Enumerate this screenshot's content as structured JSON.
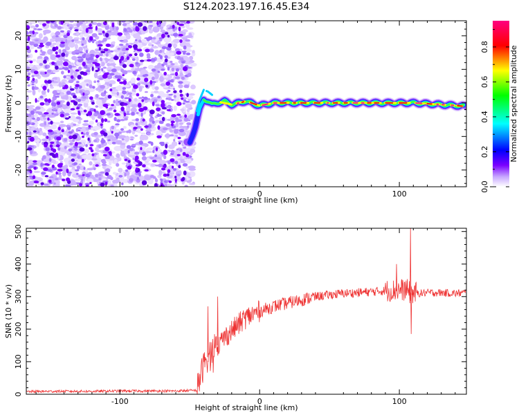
{
  "title": "S124.2023.197.16.45.E34",
  "chart_data": [
    {
      "type": "heatmap",
      "xlabel": "Height of straight line (km)",
      "ylabel": "Frequency (Hz)",
      "xlim": [
        -167,
        148
      ],
      "ylim": [
        -25,
        24.5
      ],
      "xticks": [
        -100,
        0,
        100
      ],
      "xtick_labels": [
        "-100",
        "0",
        "100"
      ],
      "yticks": [
        -20,
        -10,
        0,
        10,
        20
      ],
      "ytick_labels": [
        "-20",
        "-10",
        "0",
        "10",
        "20"
      ],
      "noise_region_x": [
        -167,
        -50
      ],
      "ridge": {
        "x": [
          -50,
          -46,
          -43,
          -40,
          -37,
          -34,
          -30,
          -25,
          -20,
          -10,
          0,
          10,
          30,
          60,
          90,
          110,
          130,
          148
        ],
        "y": [
          -12,
          -7,
          -2,
          1,
          0.5,
          -0.5,
          0,
          0.5,
          -0.5,
          0.5,
          -0.8,
          0,
          0,
          0,
          0,
          0,
          -0.5,
          -1
        ]
      },
      "colorbar": {
        "label": "Normalized spectral amplitude",
        "range": [
          0,
          0.95
        ],
        "ticks": [
          0.0,
          0.2,
          0.4,
          0.6,
          0.8
        ],
        "tick_labels": [
          "0.0",
          "0.2",
          "0.4",
          "0.6",
          "0.8"
        ],
        "colors": [
          "#ffffff",
          "#c8a8ff",
          "#7a00ff",
          "#0000ff",
          "#00ffff",
          "#00ff00",
          "#ffff00",
          "#ff0000",
          "#ff0080"
        ]
      }
    },
    {
      "type": "line",
      "xlabel": "Height of straight line (km)",
      "ylabel": "SNR (10 * v/v)",
      "xlim": [
        -167,
        148
      ],
      "ylim": [
        0,
        510
      ],
      "xticks": [
        -100,
        0,
        100
      ],
      "xtick_labels": [
        "-100",
        "0",
        "100"
      ],
      "yticks": [
        0,
        100,
        200,
        300,
        400,
        500
      ],
      "ytick_labels": [
        "0",
        "100",
        "200",
        "300",
        "400",
        "500"
      ],
      "color": "#ee3333",
      "series": [
        {
          "x": [
            -167,
            -150,
            -120,
            -100,
            -80,
            -60,
            -45,
            -40,
            -35,
            -30,
            -25,
            -20,
            -15,
            -10,
            -5,
            0,
            10,
            20,
            30,
            40,
            50,
            60,
            70,
            80,
            90,
            100,
            105,
            108,
            110,
            115,
            120,
            130,
            140,
            148
          ],
          "y": [
            8,
            9,
            9,
            10,
            10,
            10,
            12,
            90,
            130,
            150,
            175,
            195,
            215,
            235,
            245,
            255,
            270,
            280,
            290,
            300,
            305,
            310,
            312,
            315,
            318,
            320,
            322,
            310,
            312,
            310,
            312,
            312,
            310,
            312
          ]
        }
      ],
      "spikes": [
        {
          "x": -37,
          "y": 270
        },
        {
          "x": -30,
          "y": 300
        },
        {
          "x": 98,
          "y": 400
        },
        {
          "x": 108,
          "y": 510
        },
        {
          "x": 108.5,
          "y": 185
        }
      ]
    }
  ]
}
